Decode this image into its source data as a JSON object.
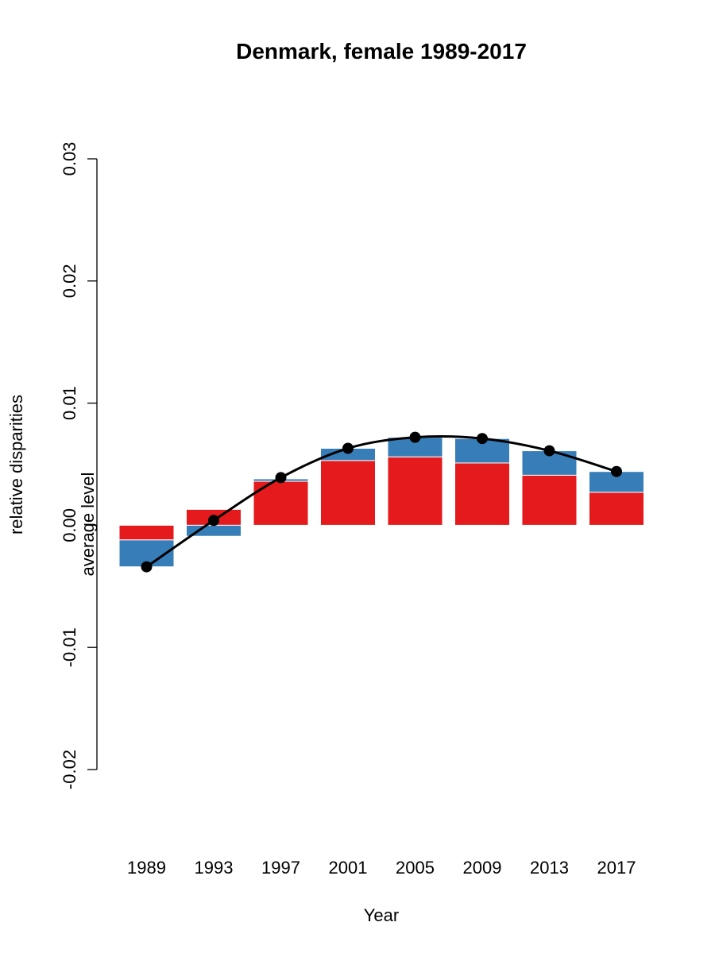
{
  "chart_data": {
    "type": "bar",
    "title": "Denmark, female 1989-2017",
    "xlabel": "Year",
    "ylabel": "relative disparities",
    "ylabel_secondary": "average level",
    "categories": [
      "1989",
      "1993",
      "1997",
      "2001",
      "2005",
      "2009",
      "2013",
      "2017"
    ],
    "ylim": [
      -0.02,
      0.03
    ],
    "yticks": [
      -0.02,
      -0.01,
      0.0,
      0.01,
      0.02,
      0.03
    ],
    "ytick_labels": [
      "-0.02",
      "-0.01",
      "0.00",
      "0.01",
      "0.02",
      "0.03"
    ],
    "grid": false,
    "stacked": true,
    "series": [
      {
        "values": [
          -0.0012,
          0.0013,
          0.0036,
          0.0053,
          0.0056,
          0.0051,
          0.0041,
          0.0027
        ],
        "color": "#e41a1c"
      },
      {
        "values": [
          -0.0022,
          -0.0009,
          0.0002,
          0.001,
          0.0016,
          0.002,
          0.002,
          0.0017
        ],
        "color": "#377eb8"
      }
    ],
    "line": {
      "values": [
        -0.0034,
        0.0004,
        0.0039,
        0.0063,
        0.0072,
        0.0071,
        0.0061,
        0.0044
      ],
      "color": "#000000"
    }
  }
}
